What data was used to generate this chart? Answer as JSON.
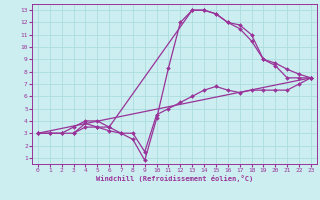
{
  "xlabel": "Windchill (Refroidissement éolien,°C)",
  "xlim": [
    -0.5,
    23.5
  ],
  "ylim": [
    0.5,
    13.5
  ],
  "xticks": [
    0,
    1,
    2,
    3,
    4,
    5,
    6,
    7,
    8,
    9,
    10,
    11,
    12,
    13,
    14,
    15,
    16,
    17,
    18,
    19,
    20,
    21,
    22,
    23
  ],
  "yticks": [
    1,
    2,
    3,
    4,
    5,
    6,
    7,
    8,
    9,
    10,
    11,
    12,
    13
  ],
  "bg_color": "#cceef0",
  "grid_color": "#aadddd",
  "line_color": "#993399",
  "lines": [
    {
      "x": [
        0,
        1,
        2,
        3,
        4,
        5,
        6,
        13,
        14,
        15,
        16,
        17,
        18,
        19,
        20,
        21,
        22,
        23
      ],
      "y": [
        3,
        3,
        3,
        3,
        3.5,
        3.5,
        3.5,
        13,
        13,
        12.7,
        12,
        11.5,
        10.5,
        9,
        8.5,
        7.5,
        7.5,
        7.5
      ]
    },
    {
      "x": [
        3,
        4,
        5,
        6,
        7,
        8,
        9,
        10,
        11,
        12,
        13,
        14,
        15,
        16,
        17,
        18,
        19,
        20,
        21,
        22,
        23
      ],
      "y": [
        3,
        3.8,
        3.5,
        3.2,
        3,
        2.5,
        0.8,
        4.2,
        8.3,
        12,
        13,
        13,
        12.7,
        12,
        11.8,
        11,
        9,
        8.7,
        8.2,
        7.8,
        7.5
      ]
    },
    {
      "x": [
        0,
        1,
        2,
        3,
        4,
        5,
        6,
        7,
        8,
        9,
        10,
        11,
        12,
        13,
        14,
        15,
        16,
        17,
        18,
        19,
        20,
        21,
        22,
        23
      ],
      "y": [
        3,
        3,
        3,
        3.5,
        4,
        4,
        3.5,
        3,
        3,
        1.5,
        4.5,
        5,
        5.5,
        6,
        6.5,
        6.8,
        6.5,
        6.3,
        6.5,
        6.5,
        6.5,
        6.5,
        7,
        7.5
      ]
    },
    {
      "x": [
        0,
        23
      ],
      "y": [
        3,
        7.5
      ]
    }
  ]
}
